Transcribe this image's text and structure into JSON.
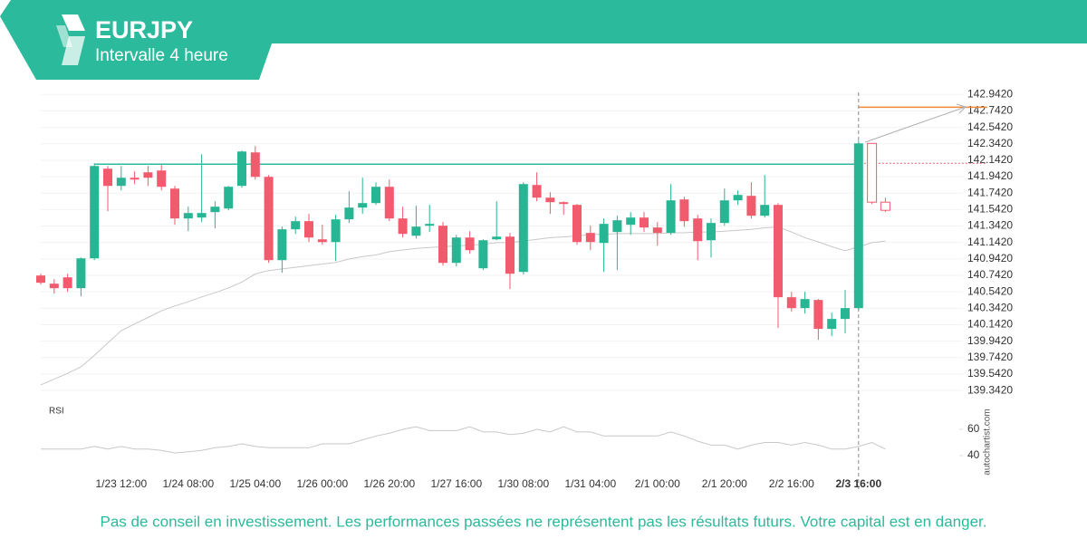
{
  "chart_data": {
    "type": "candlestick",
    "title": "EURJPY",
    "subtitle": "Intervalle 4 heure",
    "categories": [
      null,
      null,
      null,
      null,
      null,
      null,
      "1/23 12:00",
      null,
      null,
      null,
      null,
      "1/24 08:00",
      null,
      null,
      null,
      null,
      "1/25 04:00",
      null,
      null,
      null,
      null,
      "1/26 00:00",
      null,
      null,
      null,
      null,
      "1/26 20:00",
      null,
      null,
      null,
      null,
      "1/27 16:00",
      null,
      null,
      null,
      null,
      "1/30 08:00",
      null,
      null,
      null,
      null,
      "1/31 04:00",
      null,
      null,
      null,
      null,
      "2/1 00:00",
      null,
      null,
      null,
      null,
      "2/1 20:00",
      null,
      null,
      null,
      null,
      "2/2 16:00",
      null,
      null,
      null,
      null,
      "2/3 16:00",
      null,
      null
    ],
    "open": [
      140.74,
      140.641,
      140.718,
      140.586,
      140.949,
      142.039,
      141.83,
      141.929,
      141.995,
      142.017,
      141.797,
      141.434,
      141.445,
      141.511,
      141.555,
      141.83,
      142.237,
      141.94,
      140.927,
      141.302,
      141.401,
      141.18,
      141.147,
      141.423,
      141.566,
      141.621,
      141.819,
      141.434,
      141.224,
      141.346,
      141.346,
      140.894,
      141.202,
      140.828,
      141.18,
      141.213,
      140.784,
      141.841,
      141.687,
      141.632,
      141.599,
      141.258,
      141.136,
      141.269,
      141.357,
      141.445,
      141.324,
      141.258,
      141.665,
      141.434,
      141.169,
      141.379,
      141.654,
      141.709,
      141.467,
      141.599,
      140.476,
      140.344,
      140.443,
      140.091,
      140.212,
      140.344,
      142.347,
      141.632
    ],
    "high": [
      140.762,
      140.696,
      140.762,
      140.96,
      142.105,
      142.072,
      142.072,
      142.006,
      142.072,
      142.083,
      141.83,
      141.577,
      142.215,
      141.643,
      141.83,
      142.259,
      142.314,
      141.962,
      141.335,
      141.456,
      141.489,
      141.357,
      141.478,
      141.764,
      141.929,
      141.874,
      141.907,
      141.577,
      141.588,
      141.599,
      141.39,
      141.235,
      141.28,
      141.18,
      141.643,
      141.258,
      141.874,
      141.995,
      141.753,
      141.643,
      141.61,
      141.346,
      141.434,
      141.467,
      141.511,
      141.511,
      141.39,
      141.852,
      141.698,
      141.478,
      141.434,
      141.797,
      141.775,
      141.874,
      141.962,
      141.621,
      140.542,
      140.542,
      140.454,
      140.289,
      140.564,
      142.38,
      142.347,
      141.687
    ],
    "low": [
      140.63,
      140.52,
      140.542,
      140.487,
      140.927,
      141.522,
      141.775,
      141.852,
      141.83,
      141.775,
      141.357,
      141.28,
      141.39,
      141.313,
      141.533,
      141.808,
      141.907,
      140.894,
      140.773,
      141.246,
      141.147,
      141.114,
      140.916,
      141.379,
      141.489,
      141.599,
      141.401,
      141.202,
      141.191,
      141.269,
      140.861,
      140.85,
      141.004,
      140.806,
      141.169,
      140.575,
      140.751,
      141.643,
      141.489,
      141.478,
      141.114,
      141.048,
      140.784,
      140.806,
      141.235,
      141.269,
      141.103,
      141.235,
      141.335,
      140.927,
      140.96,
      141.346,
      141.599,
      141.434,
      141.445,
      140.102,
      140.3,
      140.278,
      139.959,
      140.003,
      140.036,
      140.322,
      141.61,
      141.511
    ],
    "close": [
      140.652,
      140.586,
      140.586,
      140.949,
      142.072,
      141.83,
      141.929,
      141.907,
      141.929,
      141.819,
      141.434,
      141.5,
      141.5,
      141.577,
      141.819,
      142.248,
      141.94,
      140.927,
      141.302,
      141.401,
      141.202,
      141.147,
      141.423,
      141.566,
      141.621,
      141.819,
      141.434,
      141.246,
      141.335,
      141.368,
      140.894,
      141.202,
      141.048,
      141.169,
      141.213,
      140.762,
      141.852,
      141.687,
      141.632,
      141.61,
      141.147,
      141.147,
      141.368,
      141.412,
      141.445,
      141.324,
      141.258,
      141.654,
      141.401,
      141.158,
      141.379,
      141.654,
      141.72,
      141.467,
      141.599,
      140.476,
      140.344,
      140.454,
      140.091,
      140.212,
      140.344,
      142.347,
      141.632,
      141.533
    ],
    "up_color": "#27b593",
    "down_color": "#f25a6e",
    "ylim": [
      139.2,
      143.0
    ],
    "yticks": [
      {
        "value": 139.342,
        "label": "139.3420"
      },
      {
        "value": 139.542,
        "label": "139.5420"
      },
      {
        "value": 139.742,
        "label": "139.7420"
      },
      {
        "value": 139.942,
        "label": "139.9420"
      },
      {
        "value": 140.142,
        "label": "140.1420"
      },
      {
        "value": 140.342,
        "label": "140.3420"
      },
      {
        "value": 140.542,
        "label": "140.5420"
      },
      {
        "value": 140.742,
        "label": "140.7420"
      },
      {
        "value": 140.942,
        "label": "140.9420"
      },
      {
        "value": 141.142,
        "label": "141.1420"
      },
      {
        "value": 141.342,
        "label": "141.3420"
      },
      {
        "value": 141.542,
        "label": "141.5420"
      },
      {
        "value": 141.742,
        "label": "141.7420"
      },
      {
        "value": 141.942,
        "label": "141.9420"
      },
      {
        "value": 142.142,
        "label": "142.1420"
      },
      {
        "value": 142.342,
        "label": "142.3420"
      },
      {
        "value": 142.542,
        "label": "142.5420"
      },
      {
        "value": 142.742,
        "label": "142.7420"
      },
      {
        "value": 142.942,
        "label": "142.9420"
      }
    ],
    "grid": true,
    "overlay": {
      "color": "#c8c8c8",
      "values": [
        139.41,
        139.48,
        139.55,
        139.63,
        139.77,
        139.92,
        140.07,
        140.15,
        140.23,
        140.31,
        140.37,
        140.42,
        140.48,
        140.53,
        140.59,
        140.66,
        140.76,
        140.8,
        140.82,
        140.84,
        140.86,
        140.88,
        140.9,
        140.94,
        140.97,
        140.99,
        141.03,
        141.05,
        141.07,
        141.08,
        141.09,
        141.1,
        141.11,
        141.12,
        141.14,
        141.14,
        141.16,
        141.18,
        141.2,
        141.21,
        141.22,
        141.24,
        141.24,
        141.25,
        141.25,
        141.25,
        141.25,
        141.26,
        141.26,
        141.27,
        141.27,
        141.28,
        141.29,
        141.3,
        141.32,
        141.33,
        141.27,
        141.2,
        141.15,
        141.09,
        141.04,
        141.09,
        141.14,
        141.16
      ]
    },
    "levels": [
      {
        "value": 142.094,
        "color": "#2bba9b",
        "dashed": false
      },
      {
        "value": 142.787,
        "color": "#f0883c",
        "dashed": false
      },
      {
        "value": 142.105,
        "color": "#f25a6e",
        "dashed": true
      }
    ],
    "rsi": {
      "label": "RSI",
      "color": "#c8c8c8",
      "ylim": [
        32,
        66
      ],
      "yticks": [
        40,
        60
      ],
      "values": [
        45,
        45,
        45,
        45,
        47,
        45,
        47,
        45,
        45,
        44,
        42,
        43,
        44,
        46,
        47,
        49,
        47,
        46,
        46,
        46,
        46,
        49,
        49,
        49,
        52,
        55,
        57,
        60,
        62,
        59,
        59,
        59,
        62,
        58,
        58,
        56,
        57,
        60,
        58,
        62,
        58,
        58,
        55,
        55,
        55,
        55,
        55,
        58,
        55,
        51,
        48,
        48,
        45,
        48,
        50,
        50,
        48,
        50,
        48,
        45,
        45,
        47,
        50,
        45
      ]
    }
  },
  "watermark": "autochartist.com",
  "disclaimer": "Pas de conseil en investissement. Les performances passées ne représentent pas les résultats futurs. Votre capital est en danger."
}
